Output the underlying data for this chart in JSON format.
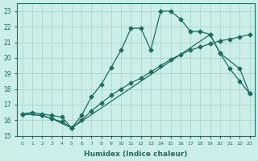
{
  "xlabel": "Humidex (Indice chaleur)",
  "bg_color": "#cceee8",
  "grid_color": "#aad4cc",
  "line_color": "#1a6e62",
  "xlim": [
    -0.5,
    23.5
  ],
  "ylim": [
    15,
    23.5
  ],
  "yticks": [
    15,
    16,
    17,
    18,
    19,
    20,
    21,
    22,
    23
  ],
  "xticks": [
    0,
    1,
    2,
    3,
    4,
    5,
    6,
    7,
    8,
    9,
    10,
    11,
    12,
    13,
    14,
    15,
    16,
    17,
    18,
    19,
    20,
    21,
    22,
    23
  ],
  "line1_x": [
    0,
    1,
    2,
    3,
    4,
    5,
    6,
    7,
    8,
    9,
    10,
    11,
    12,
    13,
    14,
    15,
    16,
    17,
    18,
    19,
    20,
    21,
    22,
    23
  ],
  "line1_y": [
    16.4,
    16.5,
    16.4,
    16.3,
    16.2,
    15.5,
    16.0,
    16.6,
    17.1,
    17.6,
    18.0,
    18.4,
    18.7,
    19.1,
    19.5,
    19.9,
    20.2,
    20.5,
    20.7,
    20.9,
    21.1,
    21.2,
    21.35,
    21.5
  ],
  "line2_x": [
    0,
    2,
    3,
    4,
    5,
    6,
    7,
    8,
    9,
    10,
    11,
    12,
    13,
    14,
    15,
    16,
    17,
    18,
    19,
    20,
    21,
    22,
    23
  ],
  "line2_y": [
    16.4,
    16.3,
    16.1,
    15.9,
    15.5,
    16.3,
    17.5,
    18.3,
    19.4,
    20.5,
    21.9,
    21.9,
    20.5,
    23.0,
    23.0,
    22.5,
    21.7,
    21.7,
    21.5,
    20.3,
    19.3,
    18.5,
    17.7
  ],
  "line3_x": [
    0,
    2,
    3,
    5,
    19,
    20,
    22,
    23
  ],
  "line3_y": [
    16.4,
    16.3,
    16.1,
    15.5,
    21.5,
    20.3,
    19.3,
    17.7
  ],
  "marker_size": 2.5,
  "line_width": 0.9
}
